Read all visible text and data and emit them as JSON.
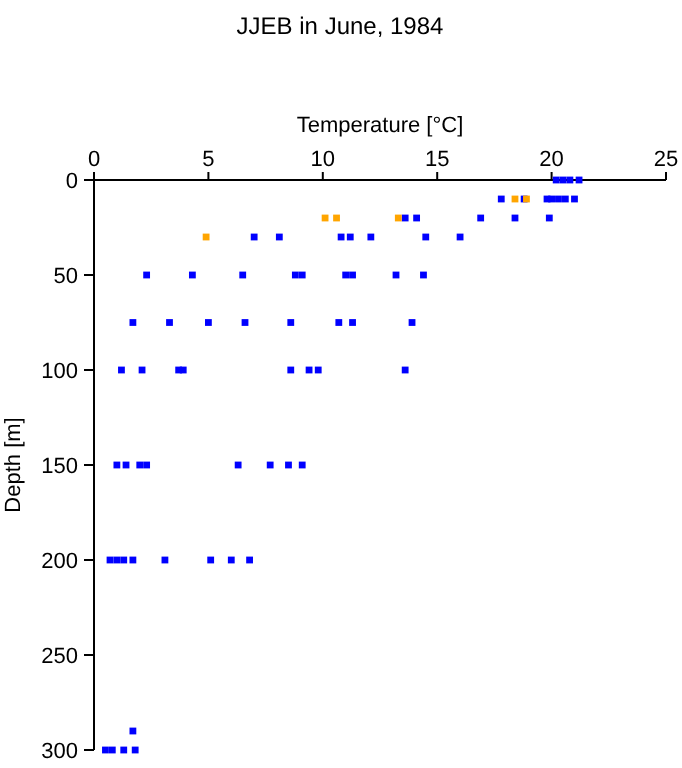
{
  "chart_data": {
    "type": "scatter",
    "title": "JJEB in June, 1984",
    "xlabel": "Temperature [°C]",
    "ylabel": "Depth [m]",
    "xlim": [
      0,
      25
    ],
    "xticks": [
      0,
      5,
      10,
      15,
      20,
      25
    ],
    "ylim": [
      300,
      0
    ],
    "yticks": [
      0,
      50,
      100,
      150,
      200,
      250,
      300
    ],
    "marker": "square",
    "series": [
      {
        "color": "#0000ff",
        "x": [
          20.2,
          20.5,
          20.8,
          21.2,
          17.8,
          18.8,
          19.8,
          20.0,
          20.3,
          20.6,
          21.0,
          13.6,
          14.1,
          16.9,
          18.4,
          19.9,
          7.0,
          8.1,
          10.8,
          11.2,
          12.1,
          14.5,
          16.0,
          2.3,
          4.3,
          6.5,
          8.8,
          9.1,
          11.0,
          11.3,
          13.2,
          14.4,
          1.7,
          3.3,
          5.0,
          6.6,
          8.6,
          10.7,
          11.3,
          13.9,
          1.2,
          2.1,
          3.7,
          3.9,
          8.6,
          9.4,
          9.8,
          13.6,
          1.0,
          1.4,
          2.0,
          2.3,
          6.3,
          7.7,
          8.5,
          9.1,
          0.7,
          1.0,
          1.3,
          1.7,
          3.1,
          5.1,
          6.0,
          6.8,
          1.7,
          0.5,
          0.8,
          1.3,
          1.8
        ],
        "values": [
          0,
          0,
          0,
          0,
          10,
          10,
          10,
          10,
          10,
          10,
          10,
          20,
          20,
          20,
          20,
          20,
          30,
          30,
          30,
          30,
          30,
          30,
          30,
          50,
          50,
          50,
          50,
          50,
          50,
          50,
          50,
          50,
          75,
          75,
          75,
          75,
          75,
          75,
          75,
          75,
          100,
          100,
          100,
          100,
          100,
          100,
          100,
          100,
          150,
          150,
          150,
          150,
          150,
          150,
          150,
          150,
          200,
          200,
          200,
          200,
          200,
          200,
          200,
          200,
          290,
          300,
          300,
          300,
          300
        ]
      },
      {
        "color": "#ffa500",
        "x": [
          18.4,
          18.9,
          10.1,
          10.6,
          13.3,
          4.9
        ],
        "values": [
          10,
          10,
          20,
          20,
          20,
          30
        ]
      }
    ]
  }
}
